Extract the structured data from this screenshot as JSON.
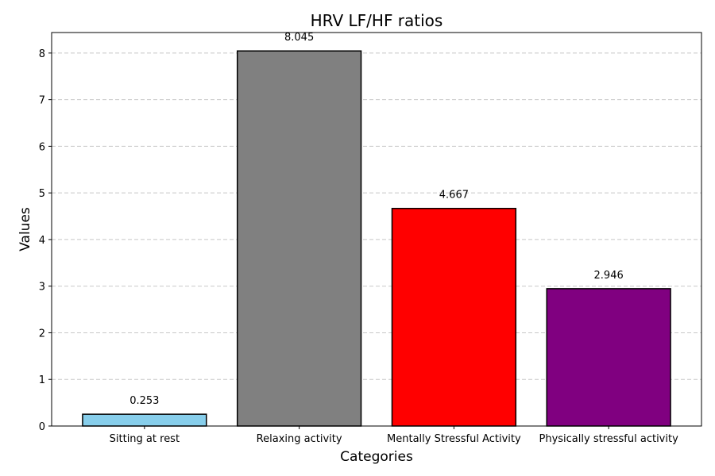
{
  "chart_data": {
    "type": "bar",
    "title": "HRV LF/HF ratios",
    "xlabel": "Categories",
    "ylabel": "Values",
    "categories": [
      "Sitting at rest",
      "Relaxing activity",
      "Mentally Stressful Activity",
      "Physically stressful activity"
    ],
    "values": [
      0.253,
      8.045,
      4.667,
      2.946
    ],
    "value_labels": [
      "0.253",
      "8.045",
      "4.667",
      "2.946"
    ],
    "colors": [
      "#87ceeb",
      "#808080",
      "#ff0000",
      "#800080"
    ],
    "ylim": [
      0,
      8.44
    ],
    "yticks": [
      0,
      1,
      2,
      3,
      4,
      5,
      6,
      7,
      8
    ],
    "ytick_labels": [
      "0",
      "1",
      "2",
      "3",
      "4",
      "5",
      "6",
      "7",
      "8"
    ],
    "grid": "y-dashed",
    "legend": "none"
  }
}
